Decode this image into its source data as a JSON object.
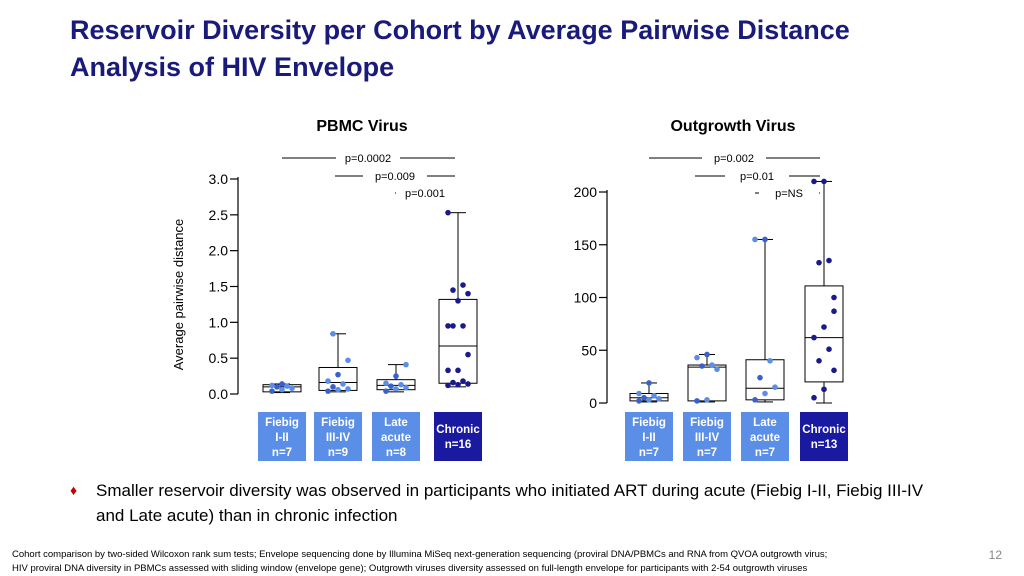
{
  "slide": {
    "title_line1": "Reservoir Diversity per Cohort by Average Pairwise Distance",
    "title_line2": "Analysis of HIV Envelope",
    "bullet": "Smaller reservoir diversity was observed in participants who initiated ART during acute (Fiebig I-II, Fiebig III-IV and Late acute) than in chronic infection",
    "bullet_symbol": "♦",
    "footnote_line1": "Cohort comparison by two-sided Wilcoxon rank sum tests; Envelope sequencing done by Illumina MiSeq next-generation sequencing (proviral DNA/PBMCs and RNA from QVOA outgrowth virus;",
    "footnote_line2": "HIV proviral DNA diversity in PBMCs assessed with sliding window (envelope gene); Outgrowth viruses diversity assessed on full-length envelope for participants with 2-54 outgrowth viruses",
    "page_number": "12"
  },
  "colors": {
    "title": "#1a1a7a",
    "light_blue": "#5b8ee6",
    "mid_blue": "#3a5fcf",
    "dark_blue": "#1a1a8c",
    "label_fill_acute": "#5b8ee6",
    "label_fill_chronic": "#1a1aa0"
  },
  "chart_data": [
    {
      "type": "box",
      "title": "PBMC Virus",
      "ylabel": "Average pairwise distance",
      "ylim": [
        0.0,
        3.0
      ],
      "yticks": [
        "0.0",
        "0.5",
        "1.0",
        "1.5",
        "2.0",
        "2.5",
        "3.0"
      ],
      "ytick_values": [
        0.0,
        0.5,
        1.0,
        1.5,
        2.0,
        2.5,
        3.0
      ],
      "groups": [
        {
          "label_lines": [
            "Fiebig",
            "I-II",
            "n=7"
          ],
          "chronic": false,
          "color": "#5b8ee6",
          "box": {
            "min": 0.02,
            "q1": 0.03,
            "median": 0.1,
            "q3": 0.13,
            "max": 0.14
          },
          "points": [
            0.04,
            0.06,
            0.08,
            0.1,
            0.11,
            0.12,
            0.14
          ]
        },
        {
          "label_lines": [
            "Fiebig",
            "III-IV",
            "n=9"
          ],
          "chronic": false,
          "color": "#5b8ee6",
          "box": {
            "min": 0.03,
            "q1": 0.05,
            "median": 0.16,
            "q3": 0.37,
            "max": 0.84
          },
          "points": [
            0.04,
            0.06,
            0.07,
            0.1,
            0.14,
            0.18,
            0.27,
            0.47,
            0.84
          ]
        },
        {
          "label_lines": [
            "Late",
            "acute",
            "n=8"
          ],
          "chronic": false,
          "color": "#5b8ee6",
          "box": {
            "min": 0.03,
            "q1": 0.06,
            "median": 0.12,
            "q3": 0.2,
            "max": 0.41
          },
          "points": [
            0.04,
            0.07,
            0.09,
            0.11,
            0.13,
            0.15,
            0.25,
            0.41
          ]
        },
        {
          "label_lines": [
            "Chronic",
            "n=16"
          ],
          "chronic": true,
          "color": "#1a1a8c",
          "box": {
            "min": 0.1,
            "q1": 0.15,
            "median": 0.67,
            "q3": 1.32,
            "max": 2.53
          },
          "points": [
            0.12,
            0.13,
            0.14,
            0.16,
            0.18,
            0.33,
            0.33,
            0.55,
            0.95,
            0.95,
            0.95,
            1.3,
            1.4,
            1.45,
            1.52,
            2.53
          ]
        }
      ],
      "annotations": [
        {
          "text": "p=0.0002",
          "from": 0,
          "to": 3,
          "level": 0
        },
        {
          "text": "p=0.009",
          "from": 1,
          "to": 3,
          "level": 1
        },
        {
          "text": "p=0.001",
          "from": 2,
          "to": 3,
          "level": 2
        }
      ]
    },
    {
      "type": "box",
      "title": "Outgrowth Virus",
      "ylabel": "",
      "ylim": [
        0,
        200
      ],
      "yticks": [
        "0",
        "50",
        "100",
        "150",
        "200"
      ],
      "ytick_values": [
        0,
        50,
        100,
        150,
        200
      ],
      "groups": [
        {
          "label_lines": [
            "Fiebig",
            "I-II",
            "n=7"
          ],
          "chronic": false,
          "color": "#5b8ee6",
          "box": {
            "min": 1,
            "q1": 2,
            "median": 5,
            "q3": 9,
            "max": 19
          },
          "points": [
            2,
            3,
            4,
            5,
            7,
            9,
            19
          ]
        },
        {
          "label_lines": [
            "Fiebig",
            "III-IV",
            "n=7"
          ],
          "chronic": false,
          "color": "#5b8ee6",
          "box": {
            "min": 1,
            "q1": 2,
            "median": 34,
            "q3": 36,
            "max": 46
          },
          "points": [
            2,
            3,
            32,
            35,
            36,
            43,
            46
          ]
        },
        {
          "label_lines": [
            "Late",
            "acute",
            "n=7"
          ],
          "chronic": false,
          "color": "#5b8ee6",
          "box": {
            "min": 1,
            "q1": 3,
            "median": 14,
            "q3": 41,
            "max": 155
          },
          "points": [
            3,
            9,
            15,
            24,
            40,
            155,
            155
          ]
        },
        {
          "label_lines": [
            "Chronic",
            "n=13"
          ],
          "chronic": true,
          "color": "#1a1a8c",
          "box": {
            "min": 0,
            "q1": 20,
            "median": 62,
            "q3": 111,
            "max": 210
          },
          "points": [
            5,
            13,
            31,
            40,
            51,
            62,
            72,
            87,
            133,
            135,
            210,
            210,
            100
          ]
        }
      ],
      "annotations": [
        {
          "text": "p=0.002",
          "from": 0,
          "to": 3,
          "level": 0
        },
        {
          "text": "p=0.01",
          "from": 1,
          "to": 3,
          "level": 1
        },
        {
          "text": "p=NS",
          "from": 2,
          "to": 3,
          "level": 2
        }
      ]
    }
  ]
}
